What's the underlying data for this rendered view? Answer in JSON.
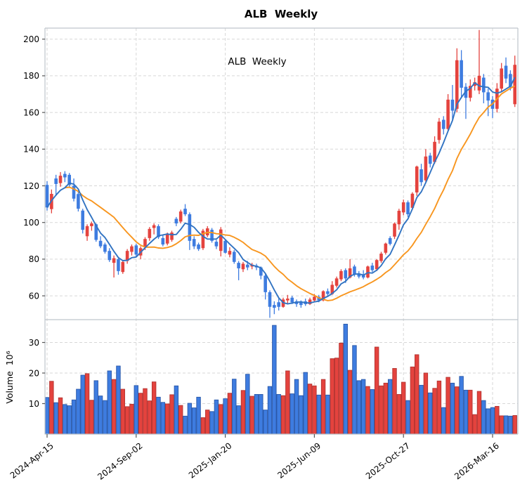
{
  "title": "ALB  Weekly",
  "inner_label": "ALB  Weekly",
  "volume_axis_label": "Volume  10⁶",
  "chart_data": {
    "type": "candlestick_with_volume",
    "interval": "weekly",
    "title": "ALB Weekly",
    "xlabel": "",
    "ylabel_volume": "Volume 10^6",
    "grid": "dashed",
    "legend": "none",
    "x_tick_labels": [
      "2024-Apr-15",
      "2024-Sep-02",
      "2025-Jan-20",
      "2025-Jun-09",
      "2025-Oct-27",
      "2026-Mar-16"
    ],
    "x_tick_weeks": [
      0,
      20,
      40,
      60,
      80,
      100
    ],
    "price_ticks": [
      60,
      80,
      100,
      120,
      140,
      160,
      180,
      200
    ],
    "price_ylim": [
      47,
      206
    ],
    "volume_ticks": [
      10,
      20,
      30
    ],
    "volume_ylim": [
      0,
      37.5
    ],
    "ma_fast_period": 5,
    "ma_slow_period": 15,
    "colors": {
      "up_candle": "#e4433e",
      "up_edge": "#b23330",
      "down_candle": "#3e7ce0",
      "down_edge": "#2a58a8",
      "ma_fast": "#3173c2",
      "ma_slow": "#f8961f",
      "grid": "#d7d7d7",
      "spine": "#bfc5cc"
    },
    "columns": [
      "open",
      "high",
      "low",
      "close",
      "volume_millions"
    ],
    "weeks": [
      [
        120.5,
        122.5,
        106.5,
        108.2,
        12.0
      ],
      [
        107.3,
        118,
        105,
        115.6,
        17.3
      ],
      [
        124,
        126,
        114.5,
        121,
        10.3
      ],
      [
        121.5,
        127.5,
        119.5,
        125.5,
        11.9
      ],
      [
        126.5,
        128,
        122,
        124.6,
        9.7
      ],
      [
        126,
        127,
        119,
        120.5,
        9.3
      ],
      [
        120,
        124,
        111.5,
        113,
        11.2
      ],
      [
        115.5,
        117,
        106,
        107.5,
        14.7
      ],
      [
        106.5,
        107.5,
        94,
        96,
        19.3
      ],
      [
        92.5,
        99,
        90,
        98,
        19.8
      ],
      [
        98,
        100.5,
        95.5,
        99.5,
        11.1
      ],
      [
        99,
        99.5,
        89.5,
        90.5,
        17.5
      ],
      [
        90,
        92.5,
        86,
        87,
        12.5
      ],
      [
        88,
        89,
        83,
        84,
        11
      ],
      [
        84.5,
        86,
        78.5,
        79.5,
        20.7
      ],
      [
        78,
        82,
        70,
        80.5,
        17.9
      ],
      [
        80,
        81,
        71.5,
        73.5,
        22.3
      ],
      [
        73,
        79.5,
        72,
        78.5,
        14.7
      ],
      [
        79,
        85.5,
        77.5,
        84.5,
        9
      ],
      [
        84,
        88,
        82,
        87,
        9.8
      ],
      [
        87.5,
        88.5,
        81.5,
        82.5,
        15.9
      ],
      [
        82,
        87,
        80,
        86,
        13.4
      ],
      [
        86.5,
        92,
        85,
        91,
        14.9
      ],
      [
        91.5,
        97.5,
        90,
        96.5,
        10.9
      ],
      [
        97,
        99.5,
        93.5,
        98.5,
        17.1
      ],
      [
        98,
        99,
        91,
        92,
        12.1
      ],
      [
        91.5,
        93,
        87,
        88,
        10.4
      ],
      [
        88.5,
        94.5,
        87.5,
        93.5,
        9.9
      ],
      [
        90.5,
        95.5,
        89.5,
        94.5,
        12.9
      ],
      [
        102,
        103,
        98,
        99.5,
        15.8
      ],
      [
        100.5,
        107,
        99.5,
        106,
        9.4
      ],
      [
        107.5,
        110,
        103.5,
        104.5,
        5.9
      ],
      [
        104.5,
        105.5,
        85,
        90,
        10.1
      ],
      [
        91,
        92.5,
        85.5,
        87,
        8.6
      ],
      [
        88,
        89,
        84.5,
        85.5,
        12.1
      ],
      [
        86,
        96.5,
        85,
        95.5,
        5.4
      ],
      [
        93,
        98,
        92,
        96.8,
        7.9
      ],
      [
        96,
        97,
        89,
        90,
        7.4
      ],
      [
        89.5,
        90.5,
        85.5,
        87,
        11.2
      ],
      [
        84.5,
        97.5,
        81.5,
        96.2,
        9.7
      ],
      [
        90,
        91,
        83,
        83.5,
        11.6
      ],
      [
        82.5,
        86.5,
        81,
        84.5,
        13.4
      ],
      [
        84,
        85,
        77.5,
        78.5,
        18
      ],
      [
        78,
        79,
        68.5,
        75,
        9.3
      ],
      [
        74.5,
        78.5,
        73,
        77.5,
        14.3
      ],
      [
        77,
        79,
        74,
        75.5,
        19.6
      ],
      [
        76,
        78,
        74.5,
        77,
        12.4
      ],
      [
        76.5,
        77.5,
        74,
        75.5,
        13
      ],
      [
        75.5,
        76,
        69,
        71,
        13
      ],
      [
        71,
        72,
        58,
        62,
        7.9
      ],
      [
        62,
        63,
        48,
        54,
        15.6
      ],
      [
        55,
        57,
        50,
        53.5,
        35.6
      ],
      [
        56.5,
        58.5,
        52,
        54,
        13
      ],
      [
        54,
        59,
        53.5,
        58,
        12.6
      ],
      [
        57.5,
        60.5,
        56,
        58.5,
        20.7
      ],
      [
        59,
        60,
        55.5,
        56.5,
        13.2
      ],
      [
        57,
        58,
        54,
        55.5,
        17.9
      ],
      [
        56.5,
        57.5,
        53.5,
        55,
        12.6
      ],
      [
        57,
        58.5,
        54.5,
        55.5,
        20.2
      ],
      [
        55.5,
        59,
        55,
        58,
        16.4
      ],
      [
        57.5,
        61,
        56.5,
        59.5,
        15.8
      ],
      [
        59.5,
        60.5,
        56.5,
        57.5,
        12.8
      ],
      [
        57.5,
        63,
        57,
        62.5,
        17.9
      ],
      [
        62.5,
        64,
        59.5,
        61,
        12.8
      ],
      [
        61,
        68,
        60.5,
        66,
        24.7
      ],
      [
        65.5,
        70.5,
        64.5,
        69.5,
        24.9
      ],
      [
        69,
        74.5,
        68,
        73.5,
        29.8
      ],
      [
        74,
        75,
        67,
        69.5,
        36
      ],
      [
        70,
        80,
        69.5,
        75,
        20.9
      ],
      [
        76,
        77,
        70.5,
        71.5,
        29
      ],
      [
        72,
        73.5,
        69.5,
        70.5,
        17.5
      ],
      [
        71.5,
        74,
        69,
        70,
        17.9
      ],
      [
        70,
        76.5,
        69.5,
        76,
        15.6
      ],
      [
        76.5,
        78,
        73,
        74,
        14.6
      ],
      [
        74.5,
        80,
        73.5,
        79.5,
        28.5
      ],
      [
        79,
        84,
        78,
        83,
        15.8
      ],
      [
        83.5,
        89,
        82.5,
        88.5,
        16.7
      ],
      [
        91.5,
        92.5,
        87.5,
        88.3,
        17.9
      ],
      [
        92.3,
        100,
        91,
        99.4,
        21.5
      ],
      [
        99,
        107.5,
        96,
        106.4,
        13
      ],
      [
        105.5,
        112.5,
        104,
        111,
        17
      ],
      [
        111,
        112,
        103,
        104.5,
        11
      ],
      [
        108,
        116.5,
        107,
        115.7,
        22
      ],
      [
        116.4,
        131,
        114.5,
        130.5,
        26
      ],
      [
        129,
        132,
        120,
        122,
        16
      ],
      [
        123,
        140,
        122,
        136,
        20
      ],
      [
        136.5,
        138,
        130,
        132,
        13.5
      ],
      [
        133,
        147,
        132,
        144,
        15
      ],
      [
        145,
        157,
        143,
        155,
        17.4
      ],
      [
        156,
        158,
        148,
        151,
        8.7
      ],
      [
        151,
        170,
        150,
        167,
        18.6
      ],
      [
        167,
        175,
        156,
        161,
        16.7
      ],
      [
        162,
        195,
        160,
        188.5,
        15.5
      ],
      [
        188.5,
        194,
        168,
        173.5,
        18.9
      ],
      [
        174,
        176,
        156.5,
        168,
        14.4
      ],
      [
        168,
        178,
        166,
        174.5,
        14.4
      ],
      [
        174.5,
        179,
        172,
        176.5,
        6.4
      ],
      [
        172,
        205,
        170,
        180,
        14
      ],
      [
        179,
        181,
        165,
        171,
        11
      ],
      [
        171,
        173,
        158,
        166.5,
        8.3
      ],
      [
        167,
        169,
        157,
        162,
        8.7
      ],
      [
        162,
        176,
        160,
        173,
        9.1
      ],
      [
        173,
        187,
        171,
        184,
        6
      ],
      [
        185.5,
        190,
        176,
        178.5,
        6
      ],
      [
        181,
        183,
        172,
        174,
        5.9
      ],
      [
        164.5,
        191,
        163,
        186,
        6.1
      ]
    ]
  }
}
